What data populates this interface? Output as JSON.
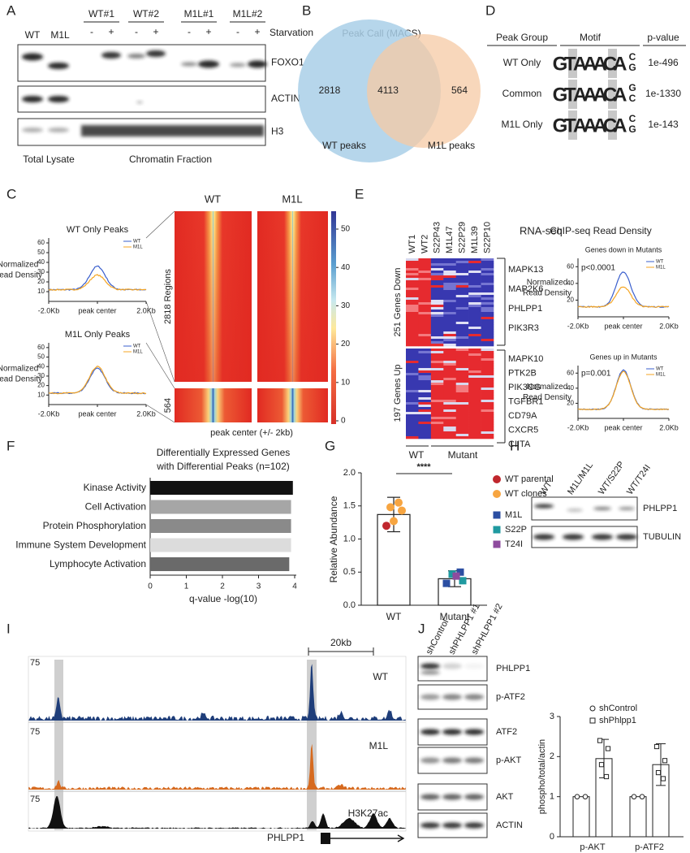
{
  "panels": {
    "A": {
      "letter": "A",
      "lanes": [
        "WT",
        "M1L"
      ],
      "groups": [
        "WT#1",
        "WT#2",
        "M1L#1",
        "M1L#2"
      ],
      "treatments": [
        "-",
        "+",
        "-",
        "+",
        "-",
        "+",
        "-",
        "+"
      ],
      "treatment_label": "Starvation",
      "blots": [
        "FOXO1",
        "ACTIN",
        "H3"
      ],
      "fractions": [
        "Total Lysate",
        "Chromatin Fraction"
      ]
    },
    "B": {
      "letter": "B",
      "title": "Peak Call (MACS)",
      "wt_only": 2818,
      "common": 4113,
      "m1l_only": 564,
      "sets": [
        "WT peaks",
        "M1L peaks"
      ]
    },
    "D": {
      "letter": "D",
      "headers": [
        "Peak Group",
        "Motif",
        "p-value"
      ],
      "rows": [
        {
          "group": "WT Only",
          "motif": [
            "G",
            "T",
            "A",
            "A",
            "A",
            "C",
            "A"
          ],
          "tail": [
            "C",
            "G"
          ],
          "pvalue": "1e-496"
        },
        {
          "group": "Common",
          "motif": [
            "G",
            "T",
            "A",
            "A",
            "A",
            "C",
            "A"
          ],
          "tail": [
            "G",
            "C"
          ],
          "pvalue": "1e-1330"
        },
        {
          "group": "M1L Only",
          "motif": [
            "G",
            "T",
            "A",
            "A",
            "A",
            "C",
            "A"
          ],
          "tail": [
            "C",
            "G"
          ],
          "pvalue": "1e-143"
        }
      ]
    },
    "C": {
      "letter": "C",
      "plots": [
        {
          "title": "WT Only Peaks",
          "ylabel": [
            "Normalized",
            "Read Density"
          ],
          "yticks": [
            10,
            20,
            30,
            40,
            50,
            60
          ],
          "legend": [
            "WT",
            "M1L"
          ],
          "xlabels": [
            "-2.0Kb",
            "peak center",
            "2.0Kb"
          ]
        },
        {
          "title": "M1L Only Peaks",
          "ylabel": [
            "Normalized",
            "Read Density"
          ],
          "yticks": [
            10,
            20,
            30,
            40,
            50,
            60
          ],
          "legend": [
            "WT",
            "M1L"
          ],
          "xlabels": [
            "-2.0Kb",
            "peak center",
            "2.0Kb"
          ]
        }
      ],
      "heatmap_columns": [
        "WT",
        "M1L"
      ],
      "row_groups": [
        "2818 Regions",
        "564"
      ],
      "colorbar_ticks": [
        50,
        40,
        30,
        20,
        10,
        0
      ],
      "xlabel": "peak center (+/- 2kb)"
    },
    "E": {
      "letter": "E",
      "columns": [
        "WT1",
        "WT2",
        "S22P43",
        "M1L47",
        "S22P29",
        "M1L39",
        "S22P10"
      ],
      "title": "RNA-seq",
      "row_groups": [
        "251 Genes Down",
        "197 Genes Up"
      ],
      "genes_down": [
        "MAPK13",
        "MAP2K6",
        "PHLPP1",
        "PIK3R3"
      ],
      "genes_up": [
        "MAPK10",
        "PTK2B",
        "PIK3CG",
        "TGFBR1",
        "CD79A",
        "CXCR5",
        "CIITA"
      ],
      "groups": [
        "WT",
        "Mutant"
      ],
      "chip_title": "ChIP-seq Read Density",
      "plots": [
        {
          "title": "Genes down in Mutants",
          "pvalue": "p<0.0001",
          "ylabel": [
            "Normalized",
            "Read Density"
          ],
          "yticks": [
            20,
            40,
            60
          ],
          "legend": [
            "WT",
            "M1L"
          ],
          "xlabels": [
            "-2.0Kb",
            "peak center",
            "2.0Kb"
          ]
        },
        {
          "title": "Genes up in Mutants",
          "pvalue": "p=0.001",
          "ylabel": [
            "Normalized",
            "Read Density"
          ],
          "yticks": [
            20,
            40,
            60
          ],
          "legend": [
            "WT",
            "M1L"
          ],
          "xlabels": [
            "-2.0Kb",
            "peak center",
            "2.0Kb"
          ]
        }
      ]
    },
    "F": {
      "letter": "F"
    },
    "G": {
      "letter": "G"
    },
    "H": {
      "letter": "H",
      "lanes": [
        "WT",
        "M1L/M1L",
        "WT/S22P",
        "WT/T24I"
      ],
      "blots": [
        "PHLPP1",
        "TUBULIN"
      ]
    },
    "I": {
      "letter": "I",
      "scale": "20kb",
      "tracks": [
        {
          "name": "WT",
          "max": 75
        },
        {
          "name": "M1L",
          "max": 75
        },
        {
          "name": "H3K27ac",
          "max": 75
        }
      ],
      "gene": "PHLPP1"
    },
    "J": {
      "letter": "J",
      "lanes": [
        "shControl",
        "shPHLPP1 #1",
        "shPHLPP1 #2"
      ],
      "blots": [
        "PHLPP1",
        "p-ATF2",
        "ATF2",
        "p-AKT",
        "AKT",
        "ACTIN"
      ]
    }
  },
  "chart_data": [
    {
      "type": "hbar",
      "title": "Differentially Expressed Genes",
      "subtitle": "with Differential Peaks (n=102)",
      "categories": [
        "Kinase Activity",
        "Cell Activation",
        "Protein Phosphorylation",
        "Immune System Development",
        "Lymphocyte Activation"
      ],
      "values": [
        3.95,
        3.9,
        3.9,
        3.9,
        3.85
      ],
      "colors": [
        "#111111",
        "#a6a6a6",
        "#8a8a8a",
        "#dcdcdc",
        "#6a6a6a"
      ],
      "xlabel": "q-value -log(10)",
      "xlim": [
        0,
        4
      ],
      "xticks": [
        0,
        1,
        2,
        3,
        4
      ]
    },
    {
      "type": "bar",
      "categories": [
        "WT",
        "Mutant"
      ],
      "values": [
        1.37,
        0.4
      ],
      "errors": [
        0.26,
        0.12
      ],
      "ylabel": "Relative Abundance",
      "ylim": [
        0,
        2
      ],
      "yticks": [
        {
          "value": 0,
          "label": "0.0"
        },
        {
          "value": 0.5,
          "label": "0.5"
        },
        {
          "value": 1,
          "label": "1.0"
        },
        {
          "value": 1.5,
          "label": "1.5"
        },
        {
          "value": 2,
          "label": "2.0"
        }
      ],
      "significance": "****",
      "points": [
        {
          "name": "WT parental",
          "color": "#c0272d",
          "marker": "circle",
          "category": "WT",
          "values": [
            1.2
          ]
        },
        {
          "name": "WT clones",
          "color": "#f7a541",
          "marker": "circle",
          "category": "WT",
          "values": [
            1.55,
            1.48,
            1.43,
            1.27
          ]
        },
        {
          "name": "M1L",
          "color": "#2b4ea2",
          "marker": "square",
          "category": "Mutant",
          "values": [
            0.33,
            0.5
          ]
        },
        {
          "name": "S22P",
          "color": "#1f9aa0",
          "marker": "square",
          "category": "Mutant",
          "values": [
            0.47,
            0.37
          ]
        },
        {
          "name": "T24I",
          "color": "#8e4b9e",
          "marker": "square",
          "category": "Mutant",
          "values": [
            0.44
          ]
        }
      ]
    },
    {
      "type": "groupbar",
      "categories": [
        "p-AKT",
        "p-ATF2"
      ],
      "ylabel": "phospho/total/actin",
      "ylim": [
        0,
        3
      ],
      "yticks": [
        0,
        1,
        2,
        3
      ],
      "series": [
        {
          "name": "shControl",
          "marker": "circle",
          "values": [
            1,
            1
          ],
          "points": [
            [
              1,
              1
            ],
            [
              1,
              1
            ]
          ]
        },
        {
          "name": "shPhlpp1",
          "marker": "square",
          "values": [
            1.95,
            1.8
          ],
          "errors": [
            0.48,
            0.52
          ],
          "points": [
            [
              2.4,
              2.2,
              1.8,
              1.5
            ],
            [
              2.25,
              1.9,
              1.6,
              1.45
            ]
          ]
        }
      ]
    }
  ]
}
